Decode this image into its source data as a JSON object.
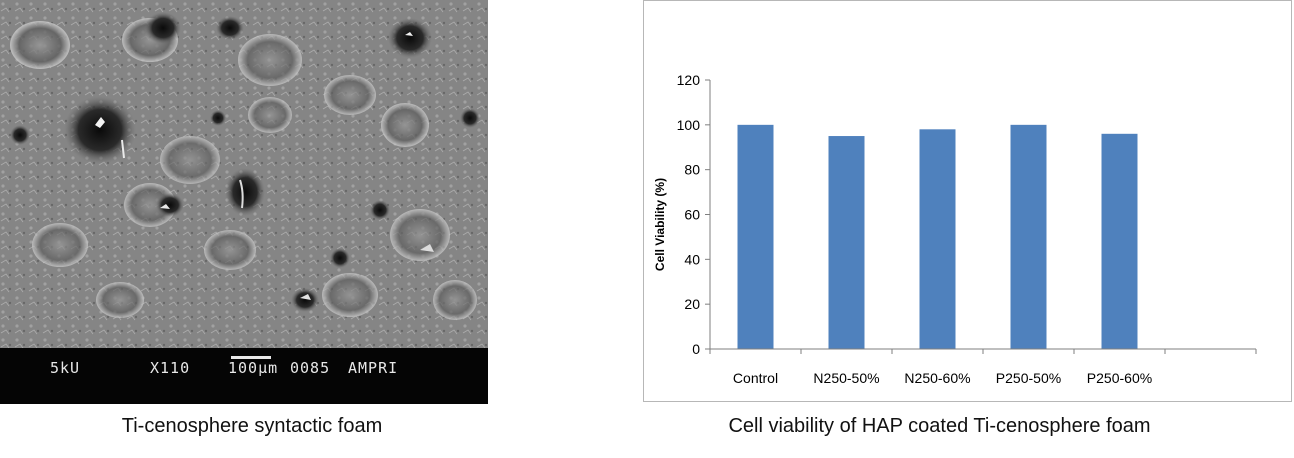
{
  "left_panel": {
    "caption": "Ti-cenosphere syntactic foam",
    "sem_info": {
      "voltage": "5kU",
      "magnification": "X110",
      "scale": "100μm",
      "image_number": "0085",
      "lab": "AMPRI"
    }
  },
  "right_panel": {
    "caption": "Cell viability of HAP coated Ti-cenosphere foam"
  },
  "chart_data": {
    "type": "bar",
    "title": "",
    "xlabel": "",
    "ylabel": "Cell Viability (%)",
    "categories": [
      "Control",
      "N250-50%",
      "N250-60%",
      "P250-50%",
      "P250-60%"
    ],
    "values": [
      100,
      95,
      98,
      100,
      96
    ],
    "ylim": [
      0,
      120
    ],
    "yticks": [
      0,
      20,
      40,
      60,
      80,
      100,
      120
    ],
    "grid": false,
    "legend": "none",
    "bar_color": "#4f81bd"
  }
}
